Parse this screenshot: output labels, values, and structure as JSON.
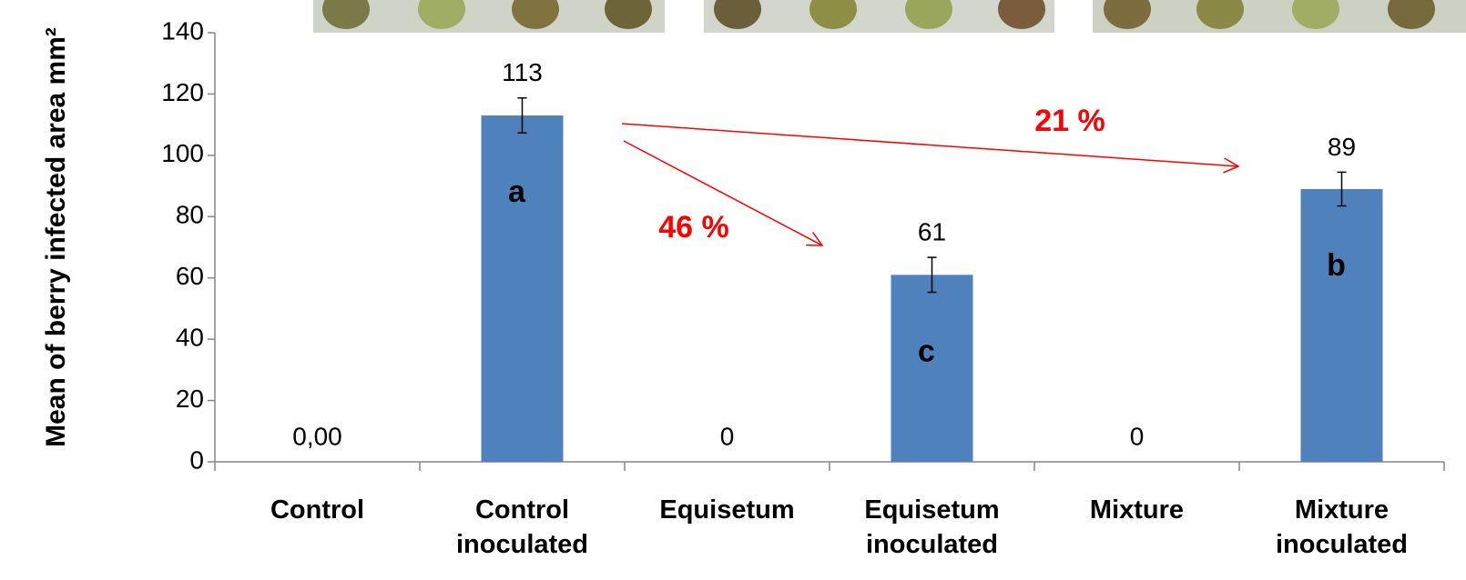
{
  "chart_data": {
    "type": "bar",
    "y_label": "Mean of berry infected area mm²",
    "categories": [
      "Control",
      "Control inoculated",
      "Equisetum",
      "Equisetum inoculated",
      "Mixture",
      "Mixture inoculated"
    ],
    "values": [
      0,
      113,
      0,
      61,
      0,
      89
    ],
    "value_labels": [
      "0,00",
      "113",
      "0",
      "61",
      "0",
      "89"
    ],
    "errors": [
      null,
      5.7,
      null,
      5.7,
      null,
      5.5
    ],
    "letters": [
      null,
      "a",
      null,
      "c",
      null,
      "b"
    ],
    "color": "#4f81bd",
    "ylim": [
      0,
      140
    ],
    "yticks": [
      0,
      20,
      40,
      60,
      80,
      100,
      120,
      140
    ],
    "annotations": [
      {
        "text": "21 %",
        "color": "#ff0000"
      },
      {
        "text": "46 %",
        "color": "#ff0000"
      }
    ]
  }
}
